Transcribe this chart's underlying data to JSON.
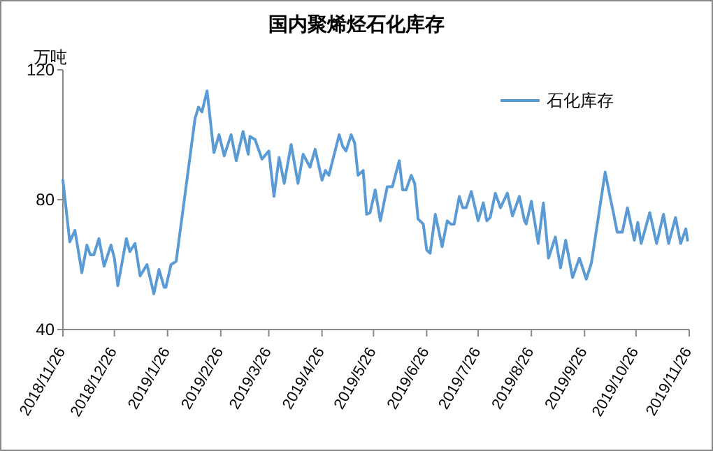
{
  "chart_data": {
    "type": "line",
    "title": "国内聚烯烃石化库存",
    "ylabel": "万吨",
    "x": [
      "2018-11-26",
      "2018-11-30",
      "2018-12-03",
      "2018-12-06",
      "2018-12-07",
      "2018-12-10",
      "2018-12-12",
      "2018-12-14",
      "2018-12-17",
      "2018-12-20",
      "2018-12-24",
      "2018-12-26",
      "2018-12-28",
      "2019-01-02",
      "2019-01-04",
      "2019-01-07",
      "2019-01-10",
      "2019-01-14",
      "2019-01-18",
      "2019-01-21",
      "2019-01-24",
      "2019-01-25",
      "2019-01-28",
      "2019-01-31",
      "2019-02-11",
      "2019-02-13",
      "2019-02-15",
      "2019-02-18",
      "2019-02-22",
      "2019-02-25",
      "2019-02-28",
      "2019-03-04",
      "2019-03-07",
      "2019-03-11",
      "2019-03-14",
      "2019-03-15",
      "2019-03-18",
      "2019-03-22",
      "2019-03-26",
      "2019-03-29",
      "2019-04-01",
      "2019-04-04",
      "2019-04-08",
      "2019-04-12",
      "2019-04-15",
      "2019-04-19",
      "2019-04-22",
      "2019-04-26",
      "2019-04-28",
      "2019-04-30",
      "2019-05-06",
      "2019-05-08",
      "2019-05-10",
      "2019-05-13",
      "2019-05-15",
      "2019-05-17",
      "2019-05-20",
      "2019-05-22",
      "2019-05-24",
      "2019-05-27",
      "2019-05-30",
      "2019-06-03",
      "2019-06-06",
      "2019-06-10",
      "2019-06-12",
      "2019-06-14",
      "2019-06-17",
      "2019-06-19",
      "2019-06-21",
      "2019-06-24",
      "2019-06-26",
      "2019-06-28",
      "2019-07-01",
      "2019-07-05",
      "2019-07-08",
      "2019-07-10",
      "2019-07-12",
      "2019-07-15",
      "2019-07-17",
      "2019-07-19",
      "2019-07-22",
      "2019-07-26",
      "2019-07-29",
      "2019-07-31",
      "2019-08-02",
      "2019-08-05",
      "2019-08-08",
      "2019-08-12",
      "2019-08-15",
      "2019-08-19",
      "2019-08-22",
      "2019-08-23",
      "2019-08-26",
      "2019-08-30",
      "2019-09-02",
      "2019-09-05",
      "2019-09-09",
      "2019-09-12",
      "2019-09-15",
      "2019-09-19",
      "2019-09-23",
      "2019-09-27",
      "2019-09-30",
      "2019-10-08",
      "2019-10-11",
      "2019-10-13",
      "2019-10-15",
      "2019-10-18",
      "2019-10-21",
      "2019-10-25",
      "2019-10-27",
      "2019-10-29",
      "2019-11-03",
      "2019-11-07",
      "2019-11-11",
      "2019-11-14",
      "2019-11-18",
      "2019-11-21",
      "2019-11-24",
      "2019-11-25"
    ],
    "series": [
      {
        "name": "石化库存",
        "color": "#5b9bd5",
        "values": [
          86,
          67,
          70.5,
          61,
          57.5,
          66,
          63,
          63,
          68,
          59.5,
          66,
          62,
          53.5,
          68,
          64,
          66.5,
          56.5,
          60,
          51,
          58.5,
          53,
          53,
          60,
          61,
          105,
          108.5,
          107,
          113.5,
          94.5,
          100,
          93.5,
          100,
          92,
          101,
          94,
          99.5,
          98.5,
          92.5,
          95,
          81,
          93,
          85,
          97,
          85,
          94,
          90,
          95.5,
          86,
          89,
          87.5,
          100,
          96.5,
          95,
          100,
          97.5,
          87.5,
          89,
          75.5,
          76,
          83,
          73.5,
          84,
          84,
          92,
          83,
          83,
          87.5,
          85,
          74,
          72.5,
          64.5,
          63.5,
          75.5,
          65.5,
          73.5,
          72.5,
          72.5,
          81,
          77.5,
          77.5,
          82.5,
          73.5,
          79,
          73.5,
          74.5,
          82,
          77.5,
          82,
          75,
          81,
          73.5,
          72.5,
          79.5,
          66.5,
          79,
          62,
          68.5,
          59,
          67.5,
          56,
          62,
          55.5,
          60.5,
          88.5,
          80.5,
          75.5,
          70,
          70,
          77.5,
          67.5,
          73,
          66.5,
          76,
          66.5,
          75.5,
          66.5,
          74.5,
          66.5,
          71,
          67.5
        ]
      }
    ],
    "xlim": [
      "2018-11-26",
      "2019-11-26"
    ],
    "xticks": [
      {
        "value": "2018-11-26",
        "label": "2018/11/26"
      },
      {
        "value": "2018-12-26",
        "label": "2018/12/26"
      },
      {
        "value": "2019-01-26",
        "label": "2019/1/26"
      },
      {
        "value": "2019-02-26",
        "label": "2019/2/26"
      },
      {
        "value": "2019-03-26",
        "label": "2019/3/26"
      },
      {
        "value": "2019-04-26",
        "label": "2019/4/26"
      },
      {
        "value": "2019-05-26",
        "label": "2019/5/26"
      },
      {
        "value": "2019-06-26",
        "label": "2019/6/26"
      },
      {
        "value": "2019-07-26",
        "label": "2019/7/26"
      },
      {
        "value": "2019-08-26",
        "label": "2019/8/26"
      },
      {
        "value": "2019-09-26",
        "label": "2019/9/26"
      },
      {
        "value": "2019-10-26",
        "label": "2019/10/26"
      },
      {
        "value": "2019-11-26",
        "label": "2019/11/26"
      }
    ],
    "ylim": [
      40,
      120
    ],
    "yticks": [
      40,
      80,
      120
    ],
    "grid": false,
    "legend": "top right",
    "line_style": "solid",
    "marker": "none"
  }
}
